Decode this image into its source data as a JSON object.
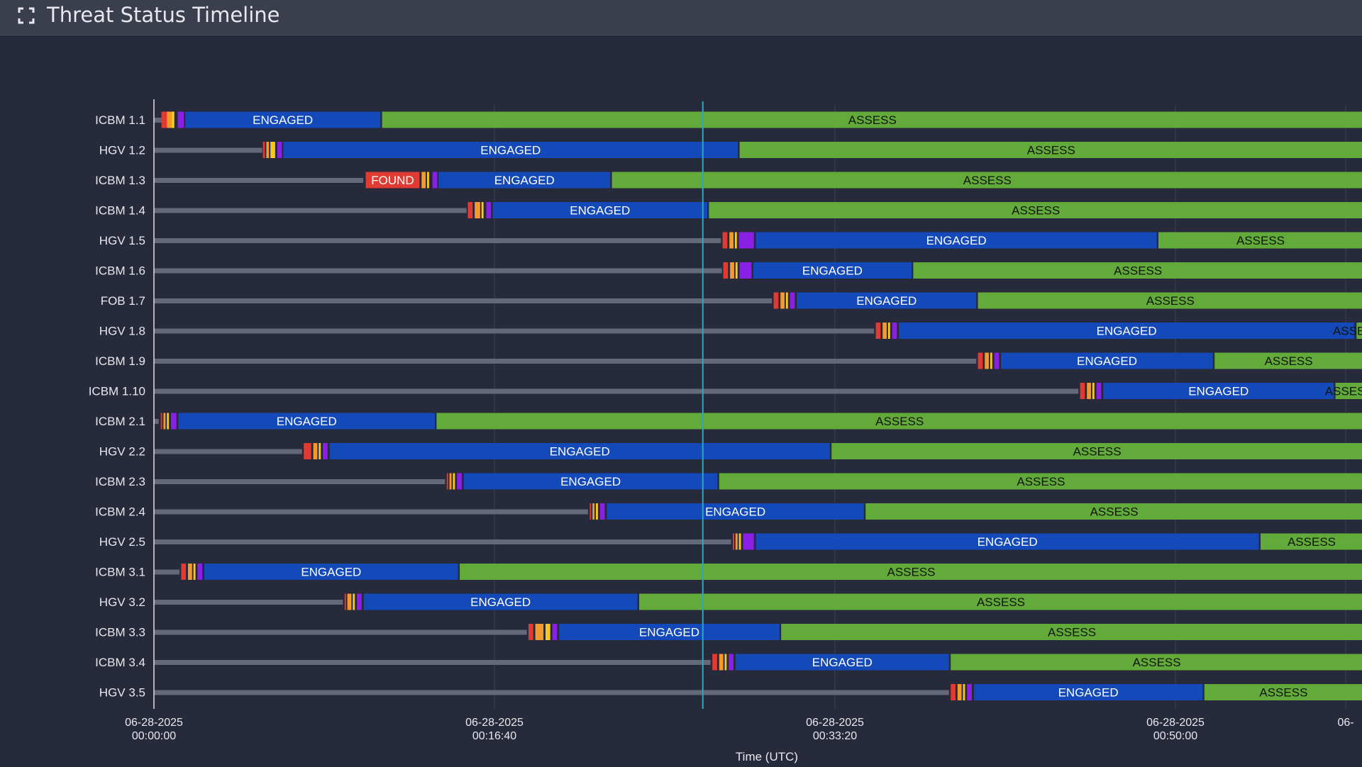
{
  "header": {
    "title": "Threat Status Timeline",
    "expand_icon": "expand-icon"
  },
  "colors": {
    "background": "#262a3a",
    "header": "#3a3e4d",
    "pending": "#646878",
    "found": "#e03b32",
    "red": "#e03b32",
    "orange": "#f29a2e",
    "yellow": "#f7c81e",
    "purple": "#8a1fe6",
    "engaged": "#1349b8",
    "assess": "#62ab3a",
    "now_line": "#2fa6c2",
    "grid": "#3c4052",
    "axis": "#e0e0e0"
  },
  "chart_data": {
    "type": "gantt",
    "xlabel": "Time (UTC)",
    "x_unit": "seconds since 06-28-2025 00:00:00",
    "xlim": [
      0,
      3550
    ],
    "x_ticks": [
      {
        "value": 0,
        "date": "06-28-2025",
        "time": "00:00:00"
      },
      {
        "value": 1000,
        "date": "06-28-2025",
        "time": "00:16:40"
      },
      {
        "value": 2000,
        "date": "06-28-2025",
        "time": "00:33:20"
      },
      {
        "value": 3000,
        "date": "06-28-2025",
        "time": "00:50:00"
      },
      {
        "value": 3500,
        "date": "06-",
        "time": ""
      }
    ],
    "current_time": 1612,
    "rows": [
      {
        "label": "ICBM 1.1",
        "segments": [
          {
            "state": "pending",
            "start": 0,
            "end": 22
          },
          {
            "state": "red",
            "start": 22,
            "end": 38
          },
          {
            "state": "orange",
            "start": 38,
            "end": 52
          },
          {
            "state": "yellow",
            "start": 52,
            "end": 60
          },
          {
            "state": "purple",
            "start": 70,
            "end": 88
          },
          {
            "state": "engaged",
            "start": 92,
            "end": 665,
            "label": "ENGAGED"
          },
          {
            "state": "assess",
            "start": 670,
            "end": 3550,
            "label": "ASSESS"
          }
        ]
      },
      {
        "label": "HGV 1.2",
        "segments": [
          {
            "state": "pending",
            "start": 0,
            "end": 318
          },
          {
            "state": "red",
            "start": 320,
            "end": 326
          },
          {
            "state": "orange",
            "start": 330,
            "end": 338
          },
          {
            "state": "yellow",
            "start": 342,
            "end": 356
          },
          {
            "state": "purple",
            "start": 362,
            "end": 376
          },
          {
            "state": "engaged",
            "start": 380,
            "end": 1715,
            "label": "ENGAGED"
          },
          {
            "state": "assess",
            "start": 1720,
            "end": 3550,
            "label": "ASSESS"
          }
        ]
      },
      {
        "label": "ICBM 1.3",
        "segments": [
          {
            "state": "pending",
            "start": 0,
            "end": 615
          },
          {
            "state": "found",
            "start": 622,
            "end": 780,
            "label": "FOUND"
          },
          {
            "state": "orange",
            "start": 786,
            "end": 798
          },
          {
            "state": "yellow",
            "start": 802,
            "end": 808
          },
          {
            "state": "purple",
            "start": 818,
            "end": 832
          },
          {
            "state": "engaged",
            "start": 836,
            "end": 1340,
            "label": "ENGAGED"
          },
          {
            "state": "assess",
            "start": 1345,
            "end": 3550,
            "label": "ASSESS"
          }
        ]
      },
      {
        "label": "ICBM 1.4",
        "segments": [
          {
            "state": "pending",
            "start": 0,
            "end": 918
          },
          {
            "state": "red",
            "start": 922,
            "end": 936
          },
          {
            "state": "orange",
            "start": 942,
            "end": 958
          },
          {
            "state": "yellow",
            "start": 962,
            "end": 968
          },
          {
            "state": "purple",
            "start": 976,
            "end": 990
          },
          {
            "state": "engaged",
            "start": 995,
            "end": 1625,
            "label": "ENGAGED"
          },
          {
            "state": "assess",
            "start": 1630,
            "end": 3550,
            "label": "ASSESS"
          }
        ]
      },
      {
        "label": "HGV 1.5",
        "segments": [
          {
            "state": "pending",
            "start": 0,
            "end": 1665
          },
          {
            "state": "red",
            "start": 1670,
            "end": 1684
          },
          {
            "state": "orange",
            "start": 1690,
            "end": 1702
          },
          {
            "state": "yellow",
            "start": 1706,
            "end": 1712
          },
          {
            "state": "purple",
            "start": 1718,
            "end": 1762
          },
          {
            "state": "engaged",
            "start": 1768,
            "end": 2945,
            "label": "ENGAGED"
          },
          {
            "state": "assess",
            "start": 2950,
            "end": 3550,
            "label": "ASSESS"
          }
        ]
      },
      {
        "label": "ICBM 1.6",
        "segments": [
          {
            "state": "pending",
            "start": 0,
            "end": 1668
          },
          {
            "state": "red",
            "start": 1672,
            "end": 1686
          },
          {
            "state": "orange",
            "start": 1692,
            "end": 1704
          },
          {
            "state": "yellow",
            "start": 1708,
            "end": 1714
          },
          {
            "state": "purple",
            "start": 1720,
            "end": 1755
          },
          {
            "state": "engaged",
            "start": 1760,
            "end": 2225,
            "label": "ENGAGED"
          },
          {
            "state": "assess",
            "start": 2230,
            "end": 3550,
            "label": "ASSESS"
          }
        ]
      },
      {
        "label": "FOB 1.7",
        "segments": [
          {
            "state": "pending",
            "start": 0,
            "end": 1815
          },
          {
            "state": "red",
            "start": 1820,
            "end": 1834
          },
          {
            "state": "orange",
            "start": 1840,
            "end": 1852
          },
          {
            "state": "yellow",
            "start": 1856,
            "end": 1862
          },
          {
            "state": "purple",
            "start": 1868,
            "end": 1882
          },
          {
            "state": "engaged",
            "start": 1888,
            "end": 2415,
            "label": "ENGAGED"
          },
          {
            "state": "assess",
            "start": 2420,
            "end": 3550,
            "label": "ASSESS"
          }
        ]
      },
      {
        "label": "HGV 1.8",
        "segments": [
          {
            "state": "pending",
            "start": 0,
            "end": 2115
          },
          {
            "state": "red",
            "start": 2120,
            "end": 2134
          },
          {
            "state": "orange",
            "start": 2140,
            "end": 2152
          },
          {
            "state": "yellow",
            "start": 2156,
            "end": 2162
          },
          {
            "state": "purple",
            "start": 2168,
            "end": 2182
          },
          {
            "state": "engaged",
            "start": 2188,
            "end": 3525,
            "label": "ENGAGED"
          },
          {
            "state": "assess",
            "start": 3532,
            "end": 3550,
            "label": "ASSESS"
          }
        ]
      },
      {
        "label": "ICBM 1.9",
        "segments": [
          {
            "state": "pending",
            "start": 0,
            "end": 2415
          },
          {
            "state": "red",
            "start": 2420,
            "end": 2434
          },
          {
            "state": "orange",
            "start": 2440,
            "end": 2452
          },
          {
            "state": "yellow",
            "start": 2456,
            "end": 2462
          },
          {
            "state": "purple",
            "start": 2468,
            "end": 2482
          },
          {
            "state": "engaged",
            "start": 2488,
            "end": 3110,
            "label": "ENGAGED"
          },
          {
            "state": "assess",
            "start": 3115,
            "end": 3550,
            "label": "ASSESS"
          }
        ]
      },
      {
        "label": "ICBM 1.10",
        "segments": [
          {
            "state": "pending",
            "start": 0,
            "end": 2715
          },
          {
            "state": "red",
            "start": 2720,
            "end": 2734
          },
          {
            "state": "orange",
            "start": 2740,
            "end": 2752
          },
          {
            "state": "yellow",
            "start": 2756,
            "end": 2762
          },
          {
            "state": "purple",
            "start": 2768,
            "end": 2782
          },
          {
            "state": "engaged",
            "start": 2788,
            "end": 3465,
            "label": "ENGAGED"
          },
          {
            "state": "assess",
            "start": 3470,
            "end": 3550,
            "label": "ASSESS"
          }
        ]
      },
      {
        "label": "ICBM 2.1",
        "segments": [
          {
            "state": "pending",
            "start": 0,
            "end": 14
          },
          {
            "state": "red",
            "start": 20,
            "end": 24
          },
          {
            "state": "orange",
            "start": 28,
            "end": 34
          },
          {
            "state": "yellow",
            "start": 38,
            "end": 44
          },
          {
            "state": "purple",
            "start": 50,
            "end": 66
          },
          {
            "state": "engaged",
            "start": 72,
            "end": 825,
            "label": "ENGAGED"
          },
          {
            "state": "assess",
            "start": 830,
            "end": 3550,
            "label": "ASSESS"
          }
        ]
      },
      {
        "label": "HGV 2.2",
        "segments": [
          {
            "state": "pending",
            "start": 0,
            "end": 435
          },
          {
            "state": "red",
            "start": 440,
            "end": 462
          },
          {
            "state": "orange",
            "start": 468,
            "end": 480
          },
          {
            "state": "yellow",
            "start": 484,
            "end": 490
          },
          {
            "state": "purple",
            "start": 496,
            "end": 510
          },
          {
            "state": "engaged",
            "start": 516,
            "end": 1985,
            "label": "ENGAGED"
          },
          {
            "state": "assess",
            "start": 1990,
            "end": 3550,
            "label": "ASSESS"
          }
        ]
      },
      {
        "label": "ICBM 2.3",
        "segments": [
          {
            "state": "pending",
            "start": 0,
            "end": 855
          },
          {
            "state": "red",
            "start": 860,
            "end": 864
          },
          {
            "state": "orange",
            "start": 868,
            "end": 874
          },
          {
            "state": "yellow",
            "start": 878,
            "end": 884
          },
          {
            "state": "purple",
            "start": 890,
            "end": 904
          },
          {
            "state": "engaged",
            "start": 910,
            "end": 1655,
            "label": "ENGAGED"
          },
          {
            "state": "assess",
            "start": 1660,
            "end": 3550,
            "label": "ASSESS"
          }
        ]
      },
      {
        "label": "ICBM 2.4",
        "segments": [
          {
            "state": "pending",
            "start": 0,
            "end": 1275
          },
          {
            "state": "red",
            "start": 1280,
            "end": 1284
          },
          {
            "state": "orange",
            "start": 1288,
            "end": 1294
          },
          {
            "state": "yellow",
            "start": 1298,
            "end": 1304
          },
          {
            "state": "purple",
            "start": 1310,
            "end": 1324
          },
          {
            "state": "engaged",
            "start": 1330,
            "end": 2085,
            "label": "ENGAGED"
          },
          {
            "state": "assess",
            "start": 2090,
            "end": 3550,
            "label": "ASSESS"
          }
        ]
      },
      {
        "label": "HGV 2.5",
        "segments": [
          {
            "state": "pending",
            "start": 0,
            "end": 1695
          },
          {
            "state": "red",
            "start": 1700,
            "end": 1704
          },
          {
            "state": "orange",
            "start": 1708,
            "end": 1714
          },
          {
            "state": "yellow",
            "start": 1718,
            "end": 1724
          },
          {
            "state": "purple",
            "start": 1730,
            "end": 1762
          },
          {
            "state": "engaged",
            "start": 1768,
            "end": 3245,
            "label": "ENGAGED"
          },
          {
            "state": "assess",
            "start": 3250,
            "end": 3550,
            "label": "ASSESS"
          }
        ]
      },
      {
        "label": "ICBM 3.1",
        "segments": [
          {
            "state": "pending",
            "start": 0,
            "end": 75
          },
          {
            "state": "red",
            "start": 80,
            "end": 94
          },
          {
            "state": "orange",
            "start": 100,
            "end": 112
          },
          {
            "state": "yellow",
            "start": 116,
            "end": 122
          },
          {
            "state": "purple",
            "start": 128,
            "end": 142
          },
          {
            "state": "engaged",
            "start": 148,
            "end": 893,
            "label": "ENGAGED"
          },
          {
            "state": "assess",
            "start": 898,
            "end": 3550,
            "label": "ASSESS"
          }
        ]
      },
      {
        "label": "HGV 3.2",
        "segments": [
          {
            "state": "pending",
            "start": 0,
            "end": 555
          },
          {
            "state": "red",
            "start": 560,
            "end": 564
          },
          {
            "state": "orange",
            "start": 568,
            "end": 580
          },
          {
            "state": "yellow",
            "start": 584,
            "end": 590
          },
          {
            "state": "purple",
            "start": 596,
            "end": 610
          },
          {
            "state": "engaged",
            "start": 616,
            "end": 1420,
            "label": "ENGAGED"
          },
          {
            "state": "assess",
            "start": 1425,
            "end": 3550,
            "label": "ASSESS"
          }
        ]
      },
      {
        "label": "ICBM 3.3",
        "segments": [
          {
            "state": "pending",
            "start": 0,
            "end": 1095
          },
          {
            "state": "red",
            "start": 1100,
            "end": 1114
          },
          {
            "state": "orange",
            "start": 1120,
            "end": 1144
          },
          {
            "state": "yellow",
            "start": 1150,
            "end": 1164
          },
          {
            "state": "purple",
            "start": 1170,
            "end": 1184
          },
          {
            "state": "engaged",
            "start": 1190,
            "end": 1837,
            "label": "ENGAGED"
          },
          {
            "state": "assess",
            "start": 1842,
            "end": 3550,
            "label": "ASSESS"
          }
        ]
      },
      {
        "label": "ICBM 3.4",
        "segments": [
          {
            "state": "pending",
            "start": 0,
            "end": 1635
          },
          {
            "state": "red",
            "start": 1640,
            "end": 1654
          },
          {
            "state": "orange",
            "start": 1660,
            "end": 1672
          },
          {
            "state": "yellow",
            "start": 1676,
            "end": 1682
          },
          {
            "state": "purple",
            "start": 1688,
            "end": 1702
          },
          {
            "state": "engaged",
            "start": 1708,
            "end": 2335,
            "label": "ENGAGED"
          },
          {
            "state": "assess",
            "start": 2340,
            "end": 3550,
            "label": "ASSESS"
          }
        ]
      },
      {
        "label": "HGV 3.5",
        "segments": [
          {
            "state": "pending",
            "start": 0,
            "end": 2335
          },
          {
            "state": "red",
            "start": 2340,
            "end": 2354
          },
          {
            "state": "orange",
            "start": 2360,
            "end": 2372
          },
          {
            "state": "yellow",
            "start": 2376,
            "end": 2382
          },
          {
            "state": "purple",
            "start": 2388,
            "end": 2402
          },
          {
            "state": "engaged",
            "start": 2408,
            "end": 3080,
            "label": "ENGAGED"
          },
          {
            "state": "assess",
            "start": 3085,
            "end": 3550,
            "label": "ASSESS"
          }
        ]
      }
    ]
  }
}
